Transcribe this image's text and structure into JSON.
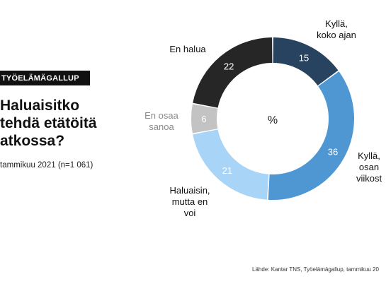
{
  "header": {
    "badge": "TYÖELÄMÄGALLUP",
    "headline_lines": [
      "Haluaisitko",
      "tehdä etätöitä",
      "atkossa?"
    ],
    "subline": "tammikuu 2021 (n=1 061)"
  },
  "footer": {
    "source": "Lähde: Kantar TNS, Työelämägallup, tammikuu 20"
  },
  "chart_data": {
    "type": "pie",
    "donut": true,
    "center_label": "%",
    "slices": [
      {
        "label_lines": [
          "Kyllä,",
          "koko ajan"
        ],
        "value": 15,
        "color": "#27435f",
        "value_color": "#ffffff",
        "label_color": "#111111"
      },
      {
        "label_lines": [
          "Kyllä,",
          "osan",
          "viikost"
        ],
        "value": 36,
        "color": "#4f97d3",
        "value_color": "#ffffff",
        "label_color": "#111111"
      },
      {
        "label_lines": [
          "Haluaisin,",
          "mutta en",
          "voi"
        ],
        "value": 21,
        "color": "#a7d4f7",
        "value_color": "#ffffff",
        "label_color": "#111111"
      },
      {
        "label_lines": [
          "En osaa",
          "sanoa"
        ],
        "value": 6,
        "color": "#c3c3c3",
        "value_color": "#ffffff",
        "label_color": "#8a8a8a"
      },
      {
        "label_lines": [
          "En halua"
        ],
        "value": 22,
        "color": "#262626",
        "value_color": "#ffffff",
        "label_color": "#111111"
      }
    ]
  }
}
